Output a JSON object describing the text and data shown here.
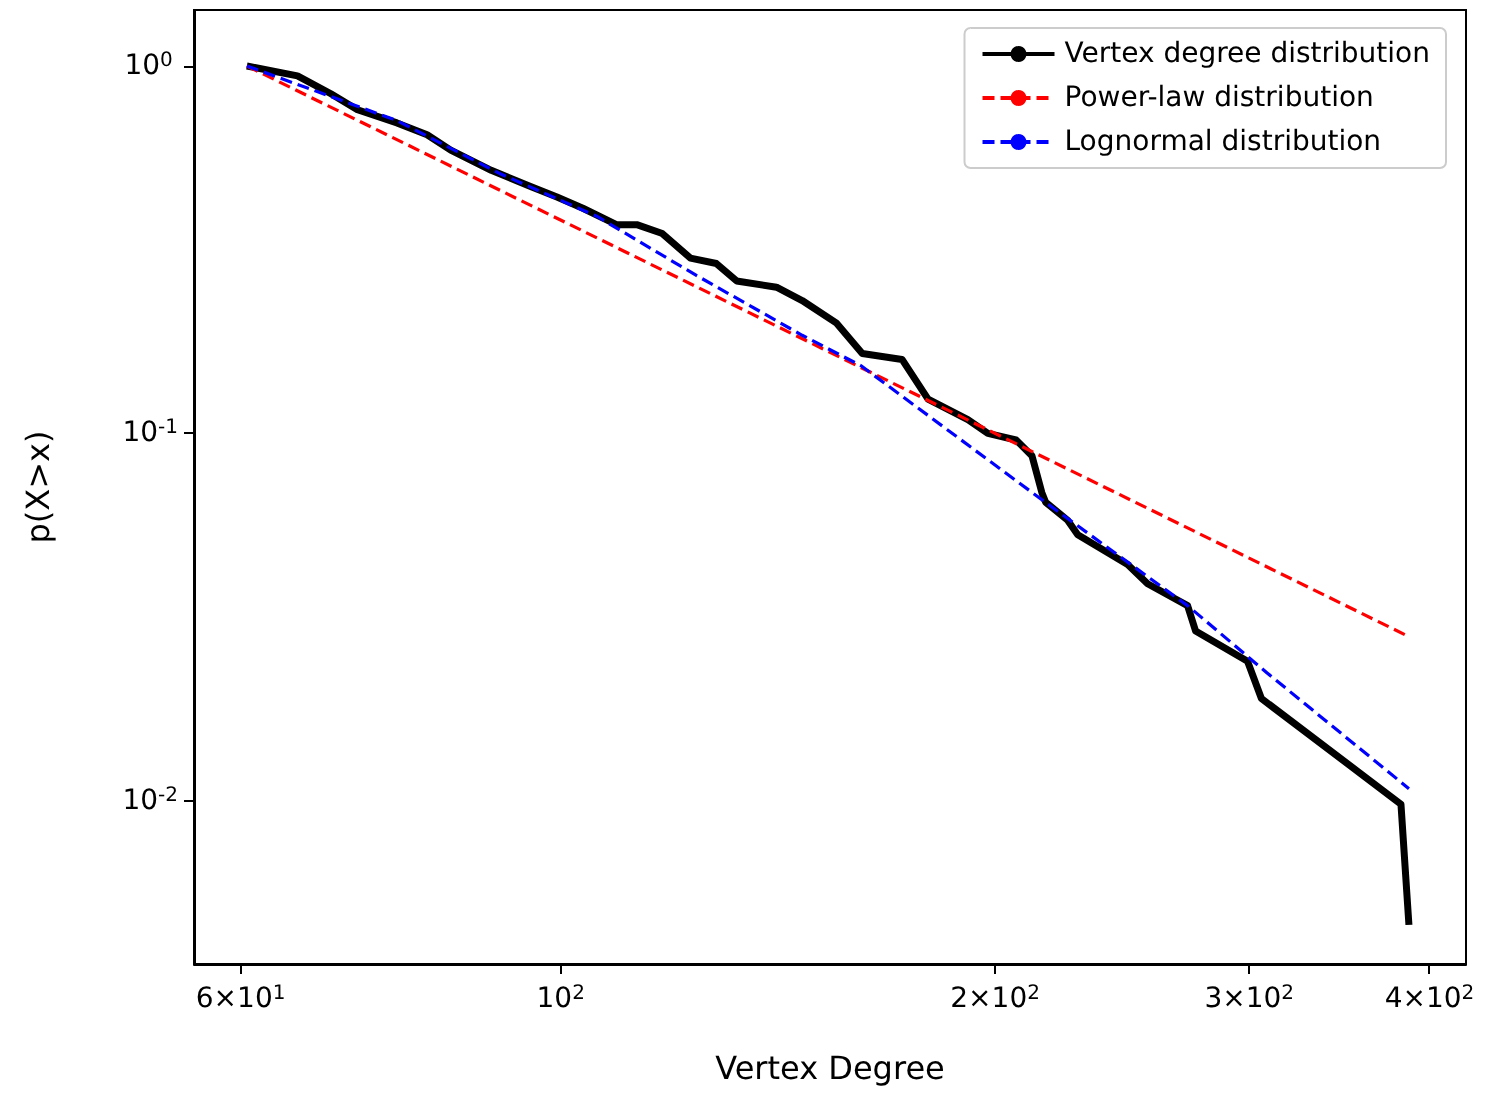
{
  "chart_data": {
    "type": "line",
    "xlabel": "Vertex Degree",
    "ylabel": "p(X>x)",
    "log": "xy",
    "grid": false,
    "legend": "top right",
    "marker": "none",
    "xlim": [
      55.7,
      424
    ],
    "ylim": [
      0.0036,
      1.42
    ],
    "xticks": [
      {
        "value": 60,
        "label": "6×10$^{1}$"
      },
      {
        "value": 100,
        "label": "10$^{2}$"
      },
      {
        "value": 200,
        "label": "2×10$^{2}$"
      },
      {
        "value": 300,
        "label": "3×10$^{2}$"
      },
      {
        "value": 400,
        "label": "4×10$^{2}$"
      }
    ],
    "yticks": [
      {
        "value": 0.01,
        "label": "10$^{-2}$"
      },
      {
        "value": 0.1,
        "label": "10$^{-1}$"
      },
      {
        "value": 1,
        "label": "10$^{0}$"
      }
    ],
    "series": [
      {
        "name": "Vertex degree distribution",
        "color": "#000000",
        "line_style": "solid",
        "x": [
          60.6,
          65.7,
          69.3,
          72.3,
          77.0,
          80.8,
          83.9,
          89.5,
          95.3,
          99.4,
          103.6,
          109.3,
          112.9,
          117.6,
          123.0,
          128.2,
          132.4,
          141.1,
          147.0,
          155.2,
          161.8,
          172.4,
          179.7,
          191.5,
          197.7,
          206.8,
          212.1,
          215.5,
          216.8,
          224.6,
          228.2,
          247.1,
          255.1,
          271.9,
          275.4,
          299.2,
          305.9,
          382.2,
          387.1
        ],
        "values": [
          1.0,
          0.94,
          0.84,
          0.76,
          0.7,
          0.65,
          0.59,
          0.52,
          0.47,
          0.44,
          0.41,
          0.37,
          0.37,
          0.35,
          0.3,
          0.29,
          0.26,
          0.25,
          0.23,
          0.2,
          0.165,
          0.159,
          0.124,
          0.109,
          0.1,
          0.096,
          0.087,
          0.069,
          0.065,
          0.058,
          0.053,
          0.044,
          0.039,
          0.034,
          0.029,
          0.024,
          0.019,
          0.0098,
          0.0046
        ]
      },
      {
        "name": "Power-law distribution",
        "color": "#ff0000",
        "line_style": "dashed",
        "x": [
          60.6,
          387.1
        ],
        "values": [
          1.0,
          0.028
        ]
      },
      {
        "name": "Lognormal distribution",
        "color": "#0000ff",
        "line_style": "dashed",
        "x": [
          60.6,
          77.0,
          90.7,
          105.9,
          124.0,
          147.0,
          161.4,
          215.5,
          271.9,
          308.7,
          387.1
        ],
        "values": [
          1.0,
          0.71,
          0.51,
          0.39,
          0.27,
          0.185,
          0.153,
          0.066,
          0.034,
          0.0223,
          0.0108
        ]
      }
    ]
  }
}
